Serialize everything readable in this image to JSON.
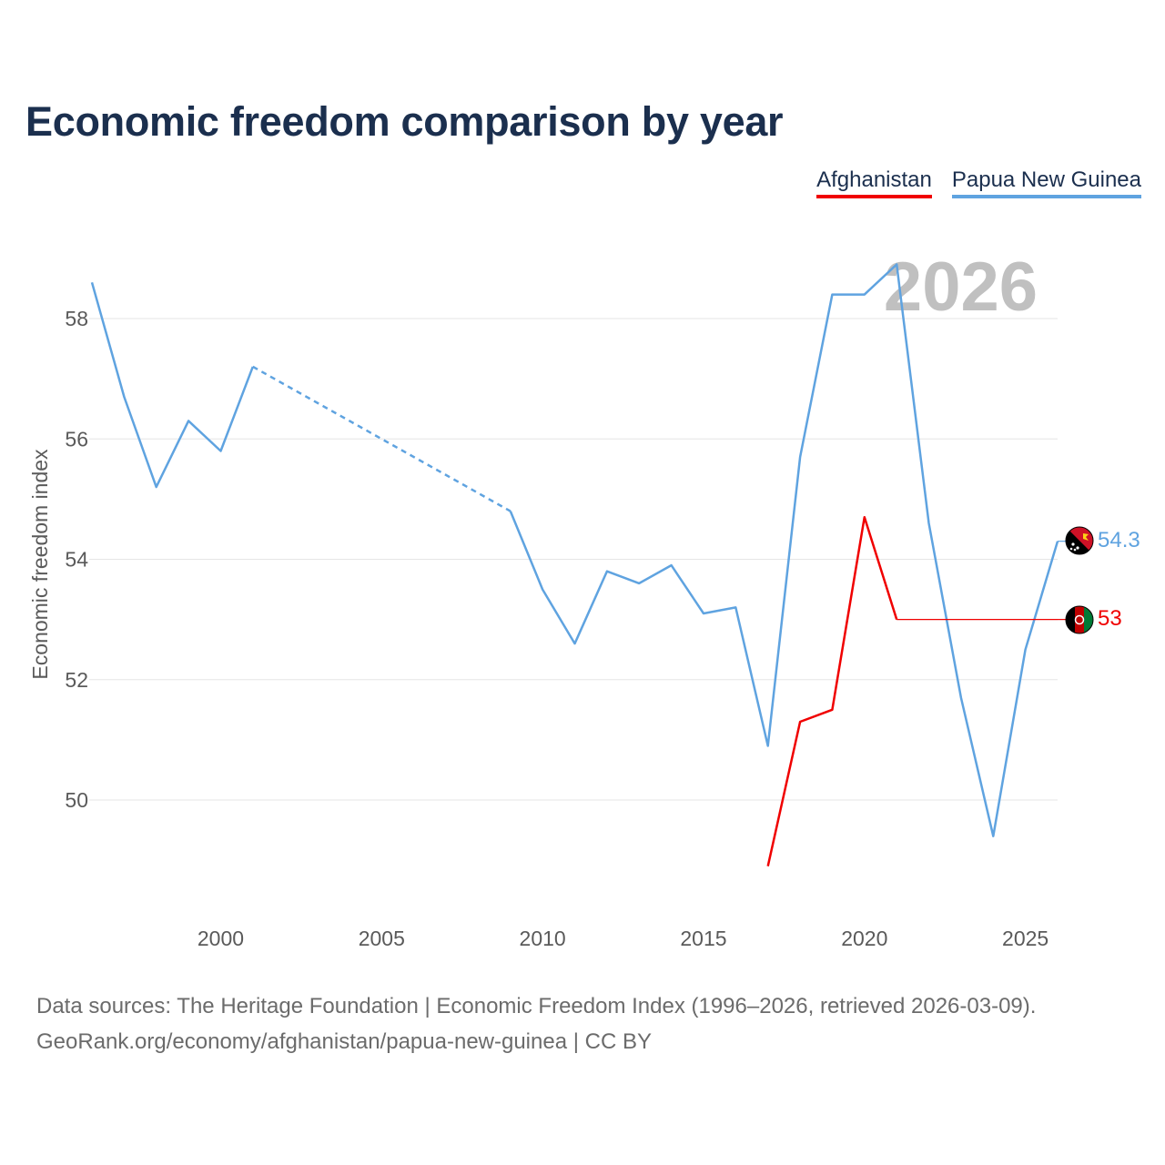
{
  "title": "Economic freedom comparison by year",
  "legend": {
    "afghanistan": "Afghanistan",
    "papua_new_guinea": "Papua New Guinea"
  },
  "colors": {
    "afghanistan": "#f00000",
    "papua_new_guinea": "#5fa3e0",
    "title": "#1b2f4e",
    "year_watermark": "#c0c0c0"
  },
  "footer": {
    "sources": "Data sources: The Heritage Foundation | Economic Freedom Index (1996–2026, retrieved 2026-03-09).",
    "url": "GeoRank.org/economy/afghanistan/papua-new-guinea | CC BY"
  },
  "chart_data": {
    "type": "line",
    "title": "Economic freedom comparison by year",
    "xlabel": "",
    "ylabel": "Economic freedom index",
    "xlim": [
      1996,
      2026
    ],
    "ylim": [
      48,
      59.5
    ],
    "xticks": [
      2000,
      2005,
      2010,
      2015,
      2020,
      2025
    ],
    "yticks": [
      50,
      52,
      54,
      56,
      58
    ],
    "year_label": "2026",
    "grid": true,
    "legend_position": "top-right",
    "series": [
      {
        "name": "Papua New Guinea",
        "key": "papua_new_guinea",
        "end_label": "54.3",
        "points": [
          [
            1996,
            58.6
          ],
          [
            1997,
            56.7
          ],
          [
            1998,
            55.2
          ],
          [
            1999,
            56.3
          ],
          [
            2000,
            55.8
          ],
          [
            2001,
            57.2
          ],
          [
            2009,
            54.8
          ],
          [
            2010,
            53.5
          ],
          [
            2011,
            52.6
          ],
          [
            2012,
            53.8
          ],
          [
            2013,
            53.6
          ],
          [
            2014,
            53.9
          ],
          [
            2015,
            53.1
          ],
          [
            2016,
            53.2
          ],
          [
            2017,
            50.9
          ],
          [
            2018,
            55.7
          ],
          [
            2019,
            58.4
          ],
          [
            2020,
            58.4
          ],
          [
            2021,
            58.9
          ],
          [
            2022,
            54.6
          ],
          [
            2023,
            51.7
          ],
          [
            2024,
            49.4
          ],
          [
            2025,
            52.5
          ],
          [
            2026,
            54.3
          ]
        ],
        "gap_between": [
          2001,
          2009
        ]
      },
      {
        "name": "Afghanistan",
        "key": "afghanistan",
        "end_label": "53",
        "points": [
          [
            2017,
            48.9
          ],
          [
            2018,
            51.3
          ],
          [
            2019,
            51.5
          ],
          [
            2020,
            54.7
          ],
          [
            2021,
            53.0
          ],
          [
            2026,
            53.0
          ]
        ],
        "thin_segment_from": 2021
      }
    ]
  }
}
